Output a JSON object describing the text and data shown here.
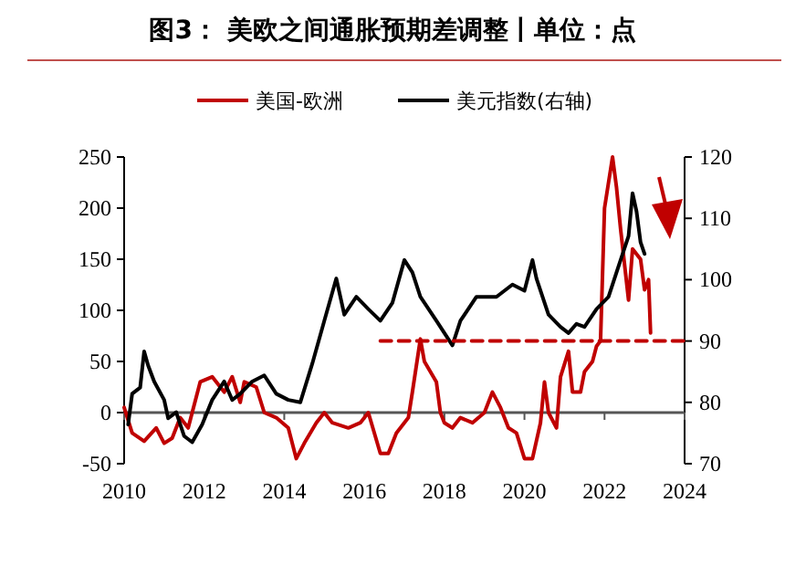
{
  "chart_data": {
    "type": "line",
    "title": "图3：    美欧之间通胀预期差调整丨单位：点",
    "legend": "top",
    "xlim": [
      2010,
      2024
    ],
    "xticks": [
      2010,
      2012,
      2014,
      2016,
      2018,
      2020,
      2022,
      2024
    ],
    "ylim": [
      -50,
      250
    ],
    "yticks": [
      -50,
      0,
      50,
      100,
      150,
      200,
      250
    ],
    "y2lim": [
      70,
      120
    ],
    "y2ticks": [
      70,
      80,
      90,
      100,
      110,
      120
    ],
    "series": [
      {
        "name": "美国-欧洲",
        "color": "#c00000",
        "x": [
          2010.0,
          2010.2,
          2010.5,
          2010.8,
          2011.0,
          2011.2,
          2011.4,
          2011.6,
          2011.7,
          2011.9,
          2012.2,
          2012.5,
          2012.7,
          2012.9,
          2013.0,
          2013.3,
          2013.5,
          2013.8,
          2014.1,
          2014.3,
          2014.5,
          2014.8,
          2015.0,
          2015.2,
          2015.6,
          2015.9,
          2016.1,
          2016.4,
          2016.6,
          2016.8,
          2017.1,
          2017.2,
          2017.4,
          2017.5,
          2017.8,
          2017.9,
          2018.0,
          2018.2,
          2018.4,
          2018.7,
          2019.0,
          2019.2,
          2019.4,
          2019.6,
          2019.8,
          2020.0,
          2020.2,
          2020.4,
          2020.5,
          2020.6,
          2020.8,
          2020.9,
          2021.1,
          2021.2,
          2021.4,
          2021.5,
          2021.7,
          2021.8,
          2021.9,
          2022.0,
          2022.2,
          2022.3,
          2022.4,
          2022.6,
          2022.7,
          2022.9,
          2023.0,
          2023.1,
          2023.15
        ],
        "values": [
          5,
          -20,
          -28,
          -15,
          -30,
          -25,
          -5,
          -15,
          0,
          30,
          35,
          20,
          35,
          10,
          30,
          25,
          0,
          -5,
          -15,
          -45,
          -30,
          -10,
          0,
          -10,
          -15,
          -10,
          0,
          -40,
          -40,
          -20,
          -5,
          20,
          72,
          50,
          30,
          0,
          -10,
          -15,
          -5,
          -10,
          0,
          20,
          5,
          -15,
          -20,
          -45,
          -45,
          -10,
          30,
          0,
          -15,
          35,
          60,
          20,
          20,
          40,
          50,
          65,
          70,
          200,
          250,
          220,
          180,
          110,
          160,
          150,
          120,
          130,
          78
        ]
      },
      {
        "name": "美元指数(右轴)",
        "color": "#000000",
        "axis": "y2",
        "x": [
          2010.1,
          2010.2,
          2010.4,
          2010.5,
          2010.6,
          2010.75,
          2011.0,
          2011.1,
          2011.3,
          2011.5,
          2011.7,
          2011.95,
          2012.2,
          2012.5,
          2012.7,
          2012.9,
          2013.2,
          2013.5,
          2013.8,
          2014.1,
          2014.4,
          2014.7,
          2015.0,
          2015.3,
          2015.5,
          2015.8,
          2016.1,
          2016.4,
          2016.7,
          2017.0,
          2017.2,
          2017.4,
          2017.8,
          2018.1,
          2018.2,
          2018.4,
          2018.8,
          2019.3,
          2019.7,
          2020.0,
          2020.2,
          2020.3,
          2020.6,
          2020.9,
          2021.1,
          2021.3,
          2021.5,
          2021.8,
          2022.1,
          2022.3,
          2022.6,
          2022.7,
          2022.8,
          2022.9,
          2023.0
        ],
        "values": [
          76.4,
          81.4,
          82.4,
          88.3,
          86,
          83.4,
          80.4,
          77.4,
          78.4,
          74.5,
          73.5,
          76.4,
          80.4,
          83.4,
          80.4,
          81.4,
          83.4,
          84.4,
          81.4,
          80.4,
          80,
          86.3,
          93.3,
          100.2,
          94.3,
          97.2,
          95.2,
          93.3,
          96.2,
          103.2,
          101.2,
          97.2,
          93.3,
          90.3,
          89.3,
          93.3,
          97.2,
          97.2,
          99.2,
          98.2,
          103.2,
          100.2,
          94.3,
          92.3,
          91.3,
          92.8,
          92.3,
          95.2,
          97.2,
          101.2,
          107.1,
          114.1,
          111.1,
          106.1,
          104.2
        ]
      },
      {
        "color": "#c00000",
        "axis": "y2",
        "line_style": "dashed",
        "x": [
          2016.4,
          2024
        ],
        "values": [
          90,
          90
        ]
      }
    ]
  }
}
